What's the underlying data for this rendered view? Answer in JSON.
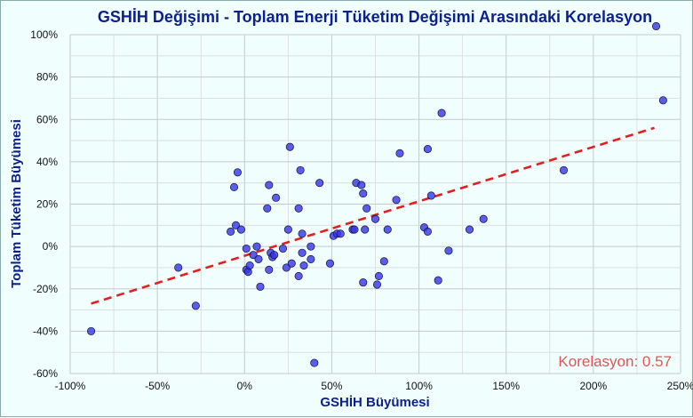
{
  "chart_data": {
    "type": "scatter",
    "title": "GSHİH Değişimi - Toplam Enerji Tüketim Değişimi Arasındaki Korelasyon",
    "xlabel": "GSHİH Büyümesi",
    "ylabel": "Toplam Tüketim Büyümesi",
    "xlim": [
      -100,
      250
    ],
    "ylim": [
      -60,
      100
    ],
    "x_ticks": [
      -100,
      -50,
      0,
      50,
      100,
      150,
      200,
      250
    ],
    "x_tick_labels": [
      "-100%",
      "-50%",
      "0%",
      "50%",
      "100%",
      "150%",
      "200%",
      "250%"
    ],
    "y_ticks": [
      -60,
      -40,
      -20,
      0,
      20,
      40,
      60,
      80,
      100
    ],
    "y_tick_labels": [
      "-60%",
      "-40%",
      "-20%",
      "0%",
      "20%",
      "40%",
      "60%",
      "80%",
      "100%"
    ],
    "grid": true,
    "point_color": "#3535e6",
    "trend_color": "#e02020",
    "trend_line": {
      "x": [
        -88,
        235
      ],
      "y": [
        -27,
        56
      ]
    },
    "annotation": "Korelasyon: 0.57",
    "annotation_color": "#e05555",
    "points": [
      {
        "x": -88,
        "y": -40
      },
      {
        "x": -38,
        "y": -10
      },
      {
        "x": -28,
        "y": -28
      },
      {
        "x": -8,
        "y": 7
      },
      {
        "x": -6,
        "y": 28
      },
      {
        "x": -5,
        "y": 10
      },
      {
        "x": -4,
        "y": 35
      },
      {
        "x": -2,
        "y": 8
      },
      {
        "x": 1,
        "y": -1
      },
      {
        "x": 1,
        "y": -11
      },
      {
        "x": 2,
        "y": -12
      },
      {
        "x": 3,
        "y": -9
      },
      {
        "x": 5,
        "y": -4
      },
      {
        "x": 7,
        "y": 0
      },
      {
        "x": 8,
        "y": -6
      },
      {
        "x": 9,
        "y": -19
      },
      {
        "x": 13,
        "y": 18
      },
      {
        "x": 14,
        "y": -11
      },
      {
        "x": 14,
        "y": 29
      },
      {
        "x": 15,
        "y": -3
      },
      {
        "x": 16,
        "y": -5
      },
      {
        "x": 17,
        "y": -4
      },
      {
        "x": 18,
        "y": 23
      },
      {
        "x": 22,
        "y": -1
      },
      {
        "x": 24,
        "y": -10
      },
      {
        "x": 25,
        "y": 8
      },
      {
        "x": 26,
        "y": 47
      },
      {
        "x": 27,
        "y": -8
      },
      {
        "x": 31,
        "y": -14
      },
      {
        "x": 31,
        "y": 18
      },
      {
        "x": 32,
        "y": 36
      },
      {
        "x": 33,
        "y": 6
      },
      {
        "x": 33,
        "y": -3
      },
      {
        "x": 34,
        "y": -9
      },
      {
        "x": 38,
        "y": 0
      },
      {
        "x": 38,
        "y": -6
      },
      {
        "x": 40,
        "y": -55
      },
      {
        "x": 43,
        "y": 30
      },
      {
        "x": 49,
        "y": -8
      },
      {
        "x": 51,
        "y": 5
      },
      {
        "x": 53,
        "y": 6
      },
      {
        "x": 55,
        "y": 6
      },
      {
        "x": 62,
        "y": 8
      },
      {
        "x": 63,
        "y": 8
      },
      {
        "x": 64,
        "y": 30
      },
      {
        "x": 67,
        "y": 29
      },
      {
        "x": 68,
        "y": 25
      },
      {
        "x": 68,
        "y": -17
      },
      {
        "x": 69,
        "y": 8
      },
      {
        "x": 70,
        "y": 18
      },
      {
        "x": 75,
        "y": 13
      },
      {
        "x": 76,
        "y": -18
      },
      {
        "x": 77,
        "y": -14
      },
      {
        "x": 80,
        "y": -7
      },
      {
        "x": 82,
        "y": 8
      },
      {
        "x": 87,
        "y": 22
      },
      {
        "x": 89,
        "y": 44
      },
      {
        "x": 103,
        "y": 9
      },
      {
        "x": 105,
        "y": 7
      },
      {
        "x": 105,
        "y": 46
      },
      {
        "x": 107,
        "y": 24
      },
      {
        "x": 111,
        "y": -16
      },
      {
        "x": 113,
        "y": 63
      },
      {
        "x": 117,
        "y": -2
      },
      {
        "x": 129,
        "y": 8
      },
      {
        "x": 137,
        "y": 13
      },
      {
        "x": 183,
        "y": 36
      },
      {
        "x": 236,
        "y": 104
      },
      {
        "x": 240,
        "y": 69
      }
    ]
  }
}
